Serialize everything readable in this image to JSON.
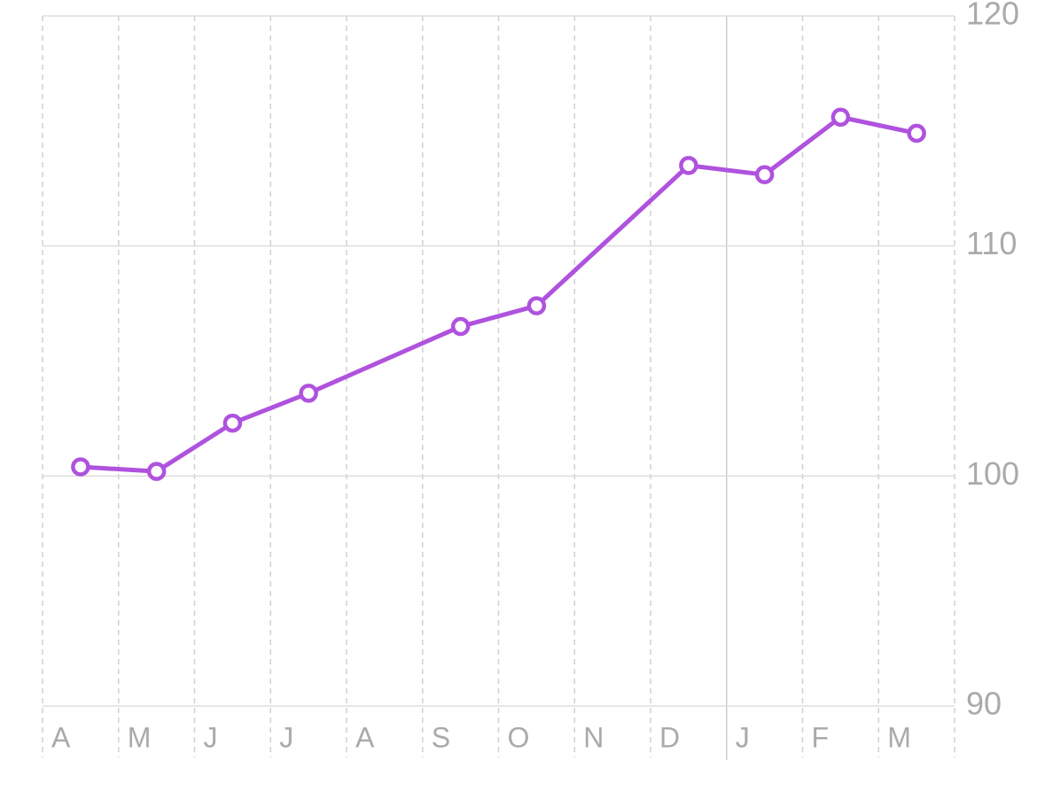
{
  "chart_data": {
    "type": "line",
    "categories": [
      "A",
      "M",
      "J",
      "J",
      "A",
      "S",
      "O",
      "N",
      "D",
      "J",
      "F",
      "M"
    ],
    "series": [
      {
        "color": "#af52de",
        "values": [
          100.4,
          100.2,
          102.3,
          103.6,
          null,
          106.5,
          107.4,
          null,
          113.5,
          113.1,
          115.6,
          114.9
        ]
      }
    ],
    "ylim": [
      90,
      120
    ],
    "yticks": [
      90,
      100,
      110,
      120
    ],
    "grid": true,
    "year_divider_before": 9
  }
}
